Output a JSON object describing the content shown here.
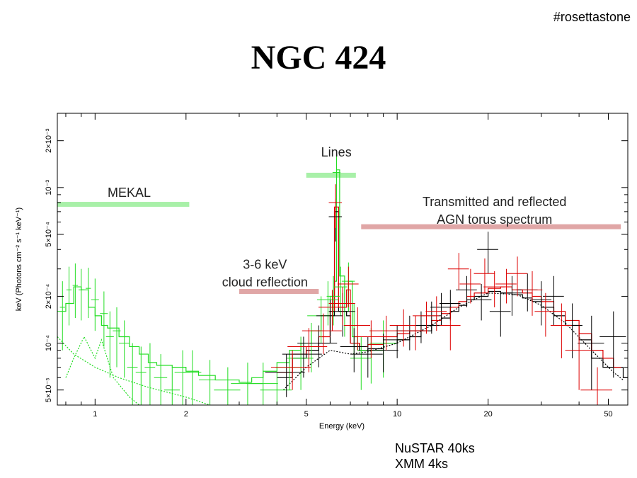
{
  "tag": "#rosettastone",
  "chart_data": {
    "type": "line",
    "title": "NGC 424",
    "xlabel": "Energy (keV)",
    "ylabel": "keV (Photons cm⁻² s⁻¹ keV⁻¹)",
    "xscale": "log",
    "yscale": "log",
    "xlim": [
      0.75,
      58
    ],
    "ylim": [
      4e-05,
      0.003
    ],
    "grid": false,
    "x_ticks": [
      {
        "value": 1,
        "label": "1"
      },
      {
        "value": 2,
        "label": "2"
      },
      {
        "value": 5,
        "label": "5"
      },
      {
        "value": 10,
        "label": "10"
      },
      {
        "value": 20,
        "label": "20"
      },
      {
        "value": 50,
        "label": "50"
      }
    ],
    "y_ticks": [
      {
        "value": 5e-05,
        "label": "5×10⁻⁵"
      },
      {
        "value": 0.0001,
        "label": "10⁻⁴"
      },
      {
        "value": 0.0002,
        "label": "2×10⁻⁴"
      },
      {
        "value": 0.0005,
        "label": "5×10⁻⁴"
      },
      {
        "value": 0.001,
        "label": "10⁻³"
      },
      {
        "value": 0.002,
        "label": "2×10⁻³"
      }
    ],
    "colors": {
      "xmm": "#22dd22",
      "fpma": "#000000",
      "fpmb": "#dd0000",
      "mekal": "#a8f0a8",
      "reflection": "#e0a6a6"
    },
    "series": [
      {
        "color": "#22dd22",
        "style": "step",
        "points": [
          [
            0.75,
            0.00016
          ],
          [
            0.8,
            0.00018
          ],
          [
            0.85,
            0.00023
          ],
          [
            0.9,
            0.00022
          ],
          [
            0.95,
            0.00017
          ],
          [
            1.0,
            0.00015
          ],
          [
            1.05,
            0.00013
          ],
          [
            1.1,
            0.000125
          ],
          [
            1.2,
            0.00011
          ],
          [
            1.3,
            9.5e-05
          ],
          [
            1.4,
            8.5e-05
          ],
          [
            1.5,
            7.5e-05
          ],
          [
            1.6,
            7.2e-05
          ],
          [
            1.8,
            7e-05
          ],
          [
            2.0,
            6.6e-05
          ],
          [
            2.2,
            6.2e-05
          ],
          [
            2.5,
            5.8e-05
          ],
          [
            3.0,
            5.6e-05
          ],
          [
            3.3,
            6e-05
          ],
          [
            3.6,
            6.6e-05
          ],
          [
            4.0,
            7.5e-05
          ],
          [
            4.4,
            9e-05
          ],
          [
            4.8,
            0.0001
          ],
          [
            5.2,
            0.00012
          ],
          [
            5.6,
            0.00015
          ],
          [
            6.0,
            0.0002
          ],
          [
            6.2,
            0.00025
          ],
          [
            6.3,
            0.0013
          ],
          [
            6.45,
            0.00027
          ],
          [
            6.7,
            0.00016
          ],
          [
            6.9,
            0.00025
          ],
          [
            7.1,
            0.00011
          ],
          [
            7.4,
            9e-05
          ],
          [
            8.0,
            9e-05
          ],
          [
            9.0,
            0.0001
          ],
          [
            10,
            0.000105
          ]
        ]
      },
      {
        "color": "#000000",
        "style": "step",
        "points": [
          [
            4.0,
            6e-05
          ],
          [
            4.5,
            8e-05
          ],
          [
            5.0,
            9e-05
          ],
          [
            5.5,
            0.0001
          ],
          [
            6.0,
            0.00015
          ],
          [
            6.2,
            0.0007
          ],
          [
            6.4,
            0.00016
          ],
          [
            6.8,
            0.00015
          ],
          [
            7.0,
            0.0001
          ],
          [
            7.5,
            9e-05
          ],
          [
            8,
            9.2e-05
          ],
          [
            9,
            0.0001
          ],
          [
            10,
            0.000105
          ],
          [
            11,
            0.00011
          ],
          [
            12,
            0.00012
          ],
          [
            13,
            0.00013
          ],
          [
            14,
            0.000145
          ],
          [
            15,
            0.00016
          ],
          [
            16,
            0.000175
          ],
          [
            17,
            0.00019
          ],
          [
            18,
            0.0002
          ],
          [
            20,
            0.000215
          ],
          [
            22,
            0.00021
          ],
          [
            24,
            0.000205
          ],
          [
            26,
            0.000195
          ],
          [
            28,
            0.000185
          ],
          [
            30,
            0.00017
          ],
          [
            33,
            0.00015
          ],
          [
            36,
            0.00013
          ],
          [
            40,
            0.000105
          ],
          [
            44,
            8e-05
          ],
          [
            48,
            7e-05
          ],
          [
            56,
            6e-05
          ]
        ]
      },
      {
        "color": "#dd0000",
        "style": "step",
        "points": [
          [
            4.0,
            6.5e-05
          ],
          [
            4.5,
            8.5e-05
          ],
          [
            5.0,
            9.5e-05
          ],
          [
            5.5,
            0.00011
          ],
          [
            6.0,
            0.00016
          ],
          [
            6.2,
            0.00075
          ],
          [
            6.4,
            0.00017
          ],
          [
            6.8,
            0.00022
          ],
          [
            7.0,
            0.0001
          ],
          [
            7.5,
            9.5e-05
          ],
          [
            8,
            9.8e-05
          ],
          [
            9,
            0.00011
          ],
          [
            10,
            0.000115
          ],
          [
            11,
            0.00012
          ],
          [
            12,
            0.00013
          ],
          [
            13,
            0.00014
          ],
          [
            14,
            0.000155
          ],
          [
            15,
            0.00017
          ],
          [
            16,
            0.000185
          ],
          [
            17,
            0.0002
          ],
          [
            18,
            0.00021
          ],
          [
            20,
            0.000225
          ],
          [
            22,
            0.00023
          ],
          [
            24,
            0.00022
          ],
          [
            26,
            0.00021
          ],
          [
            28,
            0.0002
          ],
          [
            30,
            0.000185
          ],
          [
            33,
            0.00016
          ],
          [
            36,
            0.00014
          ],
          [
            40,
            0.000115
          ],
          [
            44,
            9e-05
          ],
          [
            48,
            8e-05
          ],
          [
            52,
            7e-05
          ]
        ]
      },
      {
        "color": "#22dd22",
        "style": "dotted",
        "points": [
          [
            0.75,
            0.00011
          ],
          [
            0.85,
            8.5e-05
          ],
          [
            1.0,
            7e-05
          ],
          [
            1.2,
            6e-05
          ],
          [
            1.5,
            5.2e-05
          ],
          [
            2.0,
            4.5e-05
          ],
          [
            2.4,
            4e-05
          ]
        ]
      },
      {
        "color": "#22dd22",
        "style": "dotted",
        "points": [
          [
            0.8,
            6e-05
          ],
          [
            0.85,
            8e-05
          ],
          [
            0.92,
            0.00011
          ],
          [
            1.0,
            8e-05
          ],
          [
            1.05,
            0.000105
          ],
          [
            1.15,
            6e-05
          ],
          [
            1.3,
            4.5e-05
          ],
          [
            1.4,
            4e-05
          ]
        ]
      },
      {
        "color": "#000000",
        "style": "dotted",
        "points": [
          [
            4.2,
            5e-05
          ],
          [
            5,
            7e-05
          ],
          [
            6,
            9e-05
          ],
          [
            7,
            8.5e-05
          ],
          [
            8,
            8.8e-05
          ],
          [
            10,
            0.0001
          ],
          [
            13,
            0.00013
          ],
          [
            16,
            0.00017
          ],
          [
            20,
            0.00021
          ],
          [
            25,
            0.000205
          ],
          [
            30,
            0.000175
          ],
          [
            36,
            0.000135
          ],
          [
            44,
            9e-05
          ],
          [
            52,
            6.5e-05
          ],
          [
            56,
            5.8e-05
          ]
        ]
      },
      {
        "color": "#22dd22",
        "style": "errorbars",
        "points": [
          [
            0.78,
            0.00017,
            8e-05,
            0.02
          ],
          [
            0.82,
            0.00022,
            9e-05,
            0.02
          ],
          [
            0.86,
            0.000235,
            9e-05,
            0.02
          ],
          [
            0.9,
            0.00022,
            8e-05,
            0.02
          ],
          [
            0.95,
            0.000225,
            8e-05,
            0.02
          ],
          [
            1.0,
            0.00019,
            7e-05,
            0.03
          ],
          [
            1.07,
            0.000155,
            6e-05,
            0.03
          ],
          [
            1.12,
            0.00011,
            5e-05,
            0.03
          ],
          [
            1.18,
            0.00012,
            5e-05,
            0.03
          ],
          [
            1.25,
            0.0001,
            4e-05,
            0.04
          ],
          [
            1.33,
            7e-05,
            3e-05,
            0.04
          ],
          [
            1.42,
            6.5e-05,
            3e-05,
            0.04
          ],
          [
            1.52,
            7e-05,
            3e-05,
            0.04
          ],
          [
            1.65,
            6e-05,
            2.5e-05,
            0.05
          ],
          [
            1.8,
            5e-05,
            2e-05,
            0.06
          ],
          [
            1.95,
            6.5e-05,
            2.5e-05,
            0.06
          ],
          [
            2.1,
            6.5e-05,
            2.5e-05,
            0.07
          ],
          [
            2.4,
            5.8e-05,
            2e-05,
            0.08
          ],
          [
            2.75,
            5e-05,
            2e-05,
            0.1
          ],
          [
            3.2,
            5.5e-05,
            2e-05,
            0.12
          ],
          [
            3.6,
            5.5e-05,
            2e-05,
            0.12
          ],
          [
            4.0,
            5e-05,
            1.5e-05,
            0.12
          ],
          [
            4.4,
            7e-05,
            2e-05,
            0.1
          ],
          [
            4.8,
            8e-05,
            3e-05,
            0.1
          ],
          [
            5.2,
            0.0001,
            3.5e-05,
            0.1
          ],
          [
            5.6,
            0.00015,
            5e-05,
            0.1
          ],
          [
            5.9,
            0.00019,
            6e-05,
            0.08
          ],
          [
            6.15,
            0.0002,
            7e-05,
            0.05
          ],
          [
            6.3,
            0.00125,
            0.00035,
            0.03
          ],
          [
            6.5,
            0.00023,
            8e-05,
            0.05
          ],
          [
            6.7,
            0.00018,
            7e-05,
            0.05
          ],
          [
            6.9,
            0.00025,
            8e-05,
            0.05
          ],
          [
            7.2,
            0.00013,
            5e-05,
            0.06
          ],
          [
            7.6,
            8e-05,
            3e-05,
            0.08
          ],
          [
            8.2,
            9e-05,
            3.5e-05,
            0.08
          ],
          [
            9.0,
            0.0001,
            4e-05,
            0.1
          ]
        ]
      },
      {
        "color": "#000000",
        "style": "errorbars",
        "points": [
          [
            4.3,
            6.5e-05,
            2e-05,
            0.15
          ],
          [
            4.9,
            8.5e-05,
            2.5e-05,
            0.15
          ],
          [
            5.5,
            0.0001,
            3e-05,
            0.15
          ],
          [
            6.0,
            0.00015,
            4e-05,
            0.1
          ],
          [
            6.25,
            0.00065,
            0.0002,
            0.05
          ],
          [
            6.6,
            0.00016,
            5e-05,
            0.1
          ],
          [
            7.2,
            9.5e-05,
            3e-05,
            0.1
          ],
          [
            8,
            8.5e-05,
            2.5e-05,
            0.12
          ],
          [
            9,
            9e-05,
            2.5e-05,
            0.12
          ],
          [
            10,
            0.000105,
            2.5e-05,
            0.1
          ],
          [
            11,
            0.00012,
            3e-05,
            0.1
          ],
          [
            12,
            0.00013,
            3e-05,
            0.1
          ],
          [
            13,
            0.00015,
            3.5e-05,
            0.08
          ],
          [
            14,
            0.00017,
            4e-05,
            0.08
          ],
          [
            15,
            0.00018,
            4e-05,
            0.08
          ],
          [
            17,
            0.00022,
            5e-05,
            0.08
          ],
          [
            19,
            0.00019,
            5e-05,
            0.08
          ],
          [
            20,
            0.0004,
            0.00012,
            0.08
          ],
          [
            22,
            0.00016,
            5e-05,
            0.08
          ],
          [
            24,
            0.00021,
            6e-05,
            0.08
          ],
          [
            27,
            0.00022,
            6e-05,
            0.08
          ],
          [
            30,
            0.00019,
            6e-05,
            0.08
          ],
          [
            33,
            0.0002,
            7e-05,
            0.08
          ],
          [
            38,
            0.00013,
            5e-05,
            0.08
          ],
          [
            44,
            0.0001,
            5e-05,
            0.1
          ],
          [
            52,
            0.00011,
            5e-05,
            0.1
          ]
        ]
      },
      {
        "color": "#dd0000",
        "style": "errorbars",
        "points": [
          [
            4.5,
            7e-05,
            2e-05,
            0.15
          ],
          [
            5.1,
            9.5e-05,
            3e-05,
            0.15
          ],
          [
            5.7,
            0.00012,
            3.5e-05,
            0.15
          ],
          [
            6.1,
            0.00017,
            5e-05,
            0.1
          ],
          [
            6.25,
            0.0008,
            0.00025,
            0.05
          ],
          [
            6.6,
            0.00018,
            5e-05,
            0.1
          ],
          [
            6.9,
            0.00024,
            7e-05,
            0.08
          ],
          [
            7.4,
            0.00013,
            4e-05,
            0.1
          ],
          [
            8.2,
            0.00011,
            3e-05,
            0.12
          ],
          [
            9.2,
            0.00012,
            3e-05,
            0.12
          ],
          [
            10.5,
            0.00013,
            3.5e-05,
            0.1
          ],
          [
            11.5,
            0.00012,
            3e-05,
            0.1
          ],
          [
            12.5,
            0.00015,
            3.5e-05,
            0.1
          ],
          [
            13.5,
            0.00016,
            4e-05,
            0.08
          ],
          [
            15,
            0.00013,
            4e-05,
            0.08
          ],
          [
            16,
            0.0003,
            8e-05,
            0.08
          ],
          [
            17.5,
            0.00024,
            6e-05,
            0.08
          ],
          [
            19.5,
            0.00028,
            7e-05,
            0.08
          ],
          [
            21,
            0.00023,
            6e-05,
            0.08
          ],
          [
            23,
            0.00024,
            6e-05,
            0.08
          ],
          [
            25,
            0.00028,
            8e-05,
            0.08
          ],
          [
            28,
            0.00022,
            7e-05,
            0.08
          ],
          [
            31,
            0.00016,
            5e-05,
            0.08
          ],
          [
            35,
            0.00013,
            5e-05,
            0.08
          ],
          [
            40,
            9e-05,
            4e-05,
            0.1
          ],
          [
            46,
            5e-05,
            2e-05,
            0.12
          ]
        ]
      }
    ],
    "annotations": [
      {
        "text": "MEKAL",
        "x": 1.1,
        "y": 0.00087,
        "band": [
          0.75,
          2.05
        ],
        "band_y": 0.00078,
        "color": "#a8f0a8"
      },
      {
        "text": "Lines",
        "x": 5.6,
        "y": 0.00158,
        "band": [
          5.0,
          7.3
        ],
        "band_y": 0.0012,
        "color": "#a8f0a8"
      },
      {
        "lines": [
          "Transmitted and reflected",
          "AGN torus spectrum"
        ],
        "x": 21,
        "y": 0.00076,
        "band": [
          7.6,
          55
        ],
        "band_y": 0.00056,
        "color": "#e0a6a6"
      },
      {
        "lines": [
          "3-6 keV",
          "cloud reflection"
        ],
        "x": 3.65,
        "y": 0.0003,
        "band": [
          3.0,
          5.5
        ],
        "band_y": 0.000215,
        "color": "#e0a6a6"
      }
    ]
  },
  "footnote": {
    "line1": "NuSTAR 40ks",
    "line2": "XMM 4ks"
  }
}
